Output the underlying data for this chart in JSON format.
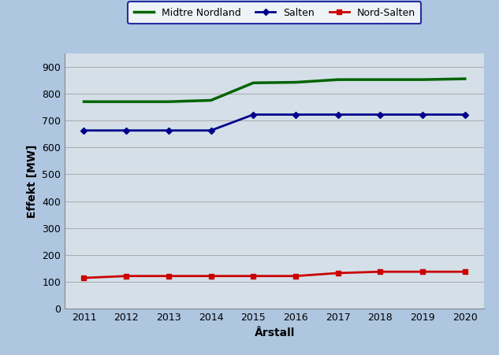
{
  "years": [
    2011,
    2012,
    2013,
    2014,
    2015,
    2016,
    2017,
    2018,
    2019,
    2020
  ],
  "salten": [
    663,
    663,
    663,
    663,
    722,
    722,
    722,
    722,
    722,
    722
  ],
  "nord_salten": [
    115,
    122,
    122,
    122,
    122,
    122,
    133,
    138,
    138,
    138
  ],
  "midtre_nordland": [
    770,
    770,
    770,
    775,
    840,
    842,
    852,
    852,
    852,
    855
  ],
  "salten_color": "#00008B",
  "nord_salten_color": "#CC0000",
  "midtre_nordland_color": "#006400",
  "ylabel": "Effekt [MW]",
  "xlabel": "Årstall",
  "ylim": [
    0,
    950
  ],
  "yticks": [
    0,
    100,
    200,
    300,
    400,
    500,
    600,
    700,
    800,
    900
  ],
  "bg_outer": "#aec6e0",
  "bg_plot": "#d4dfe8",
  "legend_bg": "#ffffff",
  "legend_border_color": "#00008B",
  "axis_label_fontsize": 10,
  "tick_fontsize": 9,
  "legend_fontsize": 9
}
